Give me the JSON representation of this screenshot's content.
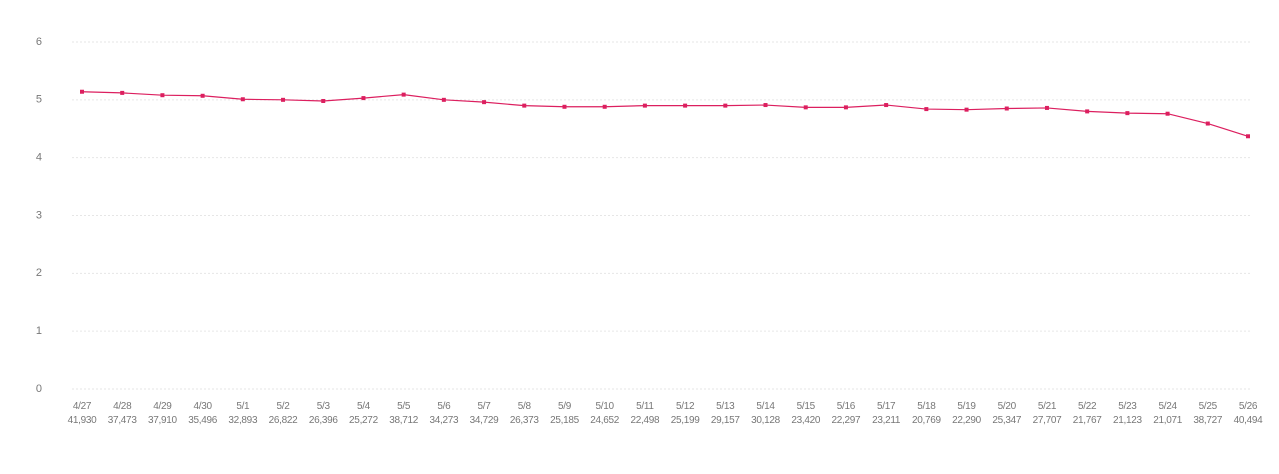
{
  "chart_data": {
    "type": "line",
    "title": "",
    "xlabel": "",
    "ylabel": "",
    "ylim": [
      0,
      6
    ],
    "yticks": [
      "0",
      "1",
      "2",
      "3",
      "4",
      "5",
      "6"
    ],
    "grid": true,
    "legend": "none",
    "color": "#dc1f5f",
    "categories": [
      "4/27",
      "4/28",
      "4/29",
      "4/30",
      "5/1",
      "5/2",
      "5/3",
      "5/4",
      "5/5",
      "5/6",
      "5/7",
      "5/8",
      "5/9",
      "5/10",
      "5/11",
      "5/12",
      "5/13",
      "5/14",
      "5/15",
      "5/16",
      "5/17",
      "5/18",
      "5/19",
      "5/20",
      "5/21",
      "5/22",
      "5/23",
      "5/24",
      "5/25",
      "5/26"
    ],
    "sublabels": [
      "41,930",
      "37,473",
      "37,910",
      "35,496",
      "32,893",
      "26,822",
      "26,396",
      "25,272",
      "38,712",
      "34,273",
      "34,729",
      "26,373",
      "25,185",
      "24,652",
      "22,498",
      "25,199",
      "29,157",
      "30,128",
      "23,420",
      "22,297",
      "23,211",
      "20,769",
      "22,290",
      "25,347",
      "27,707",
      "21,767",
      "21,123",
      "21,071",
      "38,727",
      "40,494"
    ],
    "series": [
      {
        "values": [
          5.14,
          5.12,
          5.08,
          5.07,
          5.01,
          5.0,
          4.98,
          5.03,
          5.09,
          5.0,
          4.96,
          4.9,
          4.88,
          4.88,
          4.9,
          4.9,
          4.9,
          4.91,
          4.87,
          4.87,
          4.91,
          4.84,
          4.83,
          4.85,
          4.86,
          4.8,
          4.77,
          4.76,
          4.59,
          4.37
        ]
      }
    ]
  }
}
